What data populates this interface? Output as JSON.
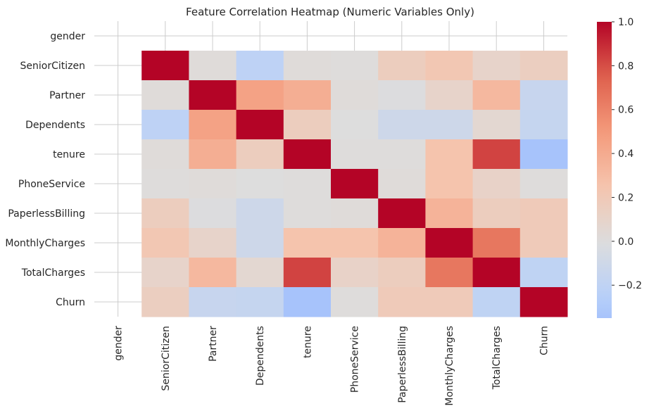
{
  "chart_data": {
    "type": "heatmap",
    "title": "Feature Correlation Heatmap (Numeric Variables Only)",
    "variables": [
      "gender",
      "SeniorCitizen",
      "Partner",
      "Dependents",
      "tenure",
      "PhoneService",
      "PaperlessBilling",
      "MonthlyCharges",
      "TotalCharges",
      "Churn"
    ],
    "matrix": [
      [
        null,
        null,
        null,
        null,
        null,
        null,
        null,
        null,
        null,
        null
      ],
      [
        null,
        1.0,
        0.02,
        -0.21,
        0.02,
        0.01,
        0.16,
        0.22,
        0.1,
        0.15
      ],
      [
        null,
        0.02,
        1.0,
        0.45,
        0.38,
        0.02,
        -0.01,
        0.1,
        0.32,
        -0.15
      ],
      [
        null,
        -0.21,
        0.45,
        1.0,
        0.16,
        -0.0,
        -0.11,
        -0.11,
        0.06,
        -0.16
      ],
      [
        null,
        0.02,
        0.38,
        0.16,
        1.0,
        0.01,
        0.01,
        0.25,
        0.83,
        -0.35
      ],
      [
        null,
        0.01,
        0.02,
        -0.0,
        0.01,
        1.0,
        0.02,
        0.25,
        0.11,
        0.01
      ],
      [
        null,
        0.16,
        -0.01,
        -0.11,
        0.01,
        0.02,
        1.0,
        0.35,
        0.16,
        0.19
      ],
      [
        null,
        0.22,
        0.1,
        -0.11,
        0.25,
        0.25,
        0.35,
        1.0,
        0.65,
        0.19
      ],
      [
        null,
        0.1,
        0.32,
        0.06,
        0.83,
        0.11,
        0.16,
        0.65,
        1.0,
        -0.2
      ],
      [
        null,
        0.15,
        -0.15,
        -0.16,
        -0.35,
        0.01,
        0.19,
        0.19,
        -0.2,
        1.0
      ]
    ],
    "colormap": "coolwarm",
    "center": 0,
    "vmin": -0.35,
    "vmax": 1.0,
    "colorbar": {
      "ticks": [
        1.0,
        0.8,
        0.6,
        0.4,
        0.2,
        0.0,
        -0.2
      ],
      "tick_labels": [
        "1.0",
        "0.8",
        "0.6",
        "0.4",
        "0.2",
        "0.0",
        "−0.2"
      ]
    },
    "grid": true,
    "colors": {
      "low": "#3b4cc0",
      "mid": "#dddddd",
      "high": "#b40426"
    }
  }
}
